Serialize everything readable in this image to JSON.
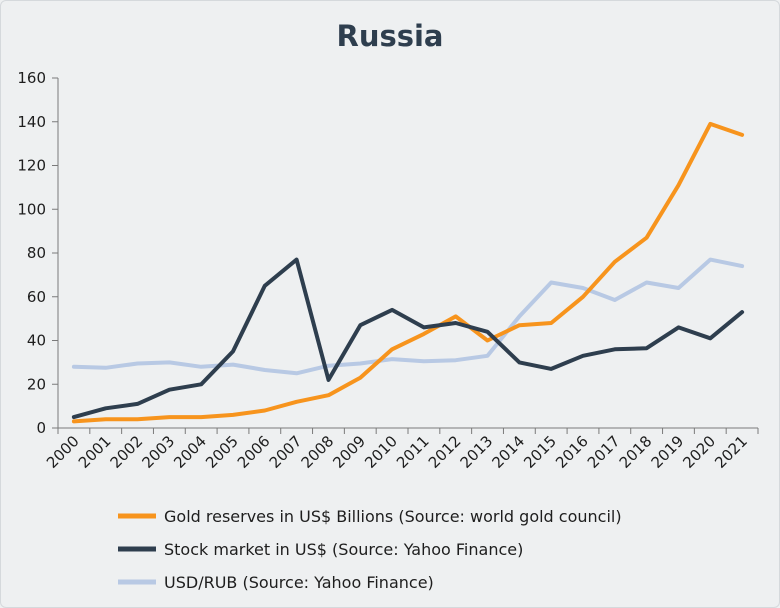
{
  "chart_data": {
    "type": "line",
    "title": "Russia",
    "xlabel": "",
    "ylabel": "",
    "x": [
      "2000",
      "2001",
      "2002",
      "2003",
      "2004",
      "2005",
      "2006",
      "2007",
      "2008",
      "2009",
      "2010",
      "2011",
      "2012",
      "2013",
      "2014",
      "2015",
      "2016",
      "2017",
      "2018",
      "2019",
      "2020",
      "2021"
    ],
    "ylim": [
      0,
      160
    ],
    "yticks": [
      0,
      20,
      40,
      60,
      80,
      100,
      120,
      140,
      160
    ],
    "grid": false,
    "legend_position": "bottom",
    "series": [
      {
        "name": "Gold reserves in US$ Billions (Source: world gold council)",
        "color": "#f7941d",
        "values": [
          3,
          4,
          4,
          5,
          5,
          6,
          8,
          12,
          15,
          23,
          36,
          43,
          51,
          40,
          47,
          48,
          60,
          76,
          87,
          111,
          139,
          134
        ]
      },
      {
        "name": "Stock market in US$ (Source: Yahoo Finance)",
        "color": "#2e3e4e",
        "values": [
          5,
          9,
          11,
          17.5,
          20,
          35,
          65,
          77,
          22,
          47,
          54,
          46,
          48,
          44,
          30,
          27,
          33,
          36,
          36.5,
          46,
          41,
          53
        ]
      },
      {
        "name": "USD/RUB (Source: Yahoo Finance)",
        "color": "#b8c9e4",
        "values": [
          28,
          27.5,
          29.5,
          30,
          28,
          29,
          26.5,
          25,
          28.5,
          29.5,
          31.5,
          30.5,
          31,
          33,
          51,
          66.5,
          64,
          58.5,
          66.5,
          64,
          77,
          74
        ]
      }
    ]
  }
}
